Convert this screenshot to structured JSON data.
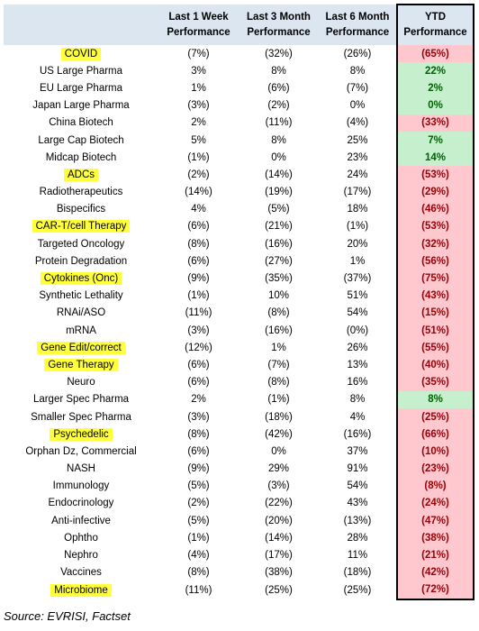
{
  "headers": [
    "",
    "Last 1 Week Performance",
    "Last 3 Month Performance",
    "Last 6 Month Performance",
    "YTD Performance"
  ],
  "rows": [
    {
      "name": "COVID",
      "highlight": true,
      "w1": "(7%)",
      "m3": "(32%)",
      "m6": "(26%)",
      "ytd": "(65%)",
      "ytd_status": "neg"
    },
    {
      "name": "US Large Pharma",
      "highlight": false,
      "w1": "3%",
      "m3": "8%",
      "m6": "8%",
      "ytd": "22%",
      "ytd_status": "pos"
    },
    {
      "name": "EU Large Pharma",
      "highlight": false,
      "w1": "1%",
      "m3": "(6%)",
      "m6": "(7%)",
      "ytd": "2%",
      "ytd_status": "pos"
    },
    {
      "name": "Japan Large Pharma",
      "highlight": false,
      "w1": "(3%)",
      "m3": "(2%)",
      "m6": "0%",
      "ytd": "0%",
      "ytd_status": "pos"
    },
    {
      "name": "China Biotech",
      "highlight": false,
      "w1": "2%",
      "m3": "(11%)",
      "m6": "(4%)",
      "ytd": "(33%)",
      "ytd_status": "neg"
    },
    {
      "name": "Large Cap Biotech",
      "highlight": false,
      "w1": "5%",
      "m3": "8%",
      "m6": "25%",
      "ytd": "7%",
      "ytd_status": "pos"
    },
    {
      "name": "Midcap Biotech",
      "highlight": false,
      "w1": "(1%)",
      "m3": "0%",
      "m6": "23%",
      "ytd": "14%",
      "ytd_status": "pos"
    },
    {
      "name": "ADCs",
      "highlight": true,
      "w1": "(2%)",
      "m3": "(14%)",
      "m6": "24%",
      "ytd": "(53%)",
      "ytd_status": "neg"
    },
    {
      "name": "Radiotherapeutics",
      "highlight": false,
      "w1": "(14%)",
      "m3": "(19%)",
      "m6": "(17%)",
      "ytd": "(29%)",
      "ytd_status": "neg"
    },
    {
      "name": "Bispecifics",
      "highlight": false,
      "w1": "4%",
      "m3": "(5%)",
      "m6": "18%",
      "ytd": "(46%)",
      "ytd_status": "neg"
    },
    {
      "name": "CAR-T/cell Therapy",
      "highlight": true,
      "w1": "(6%)",
      "m3": "(21%)",
      "m6": "(1%)",
      "ytd": "(53%)",
      "ytd_status": "neg"
    },
    {
      "name": "Targeted Oncology",
      "highlight": false,
      "w1": "(8%)",
      "m3": "(16%)",
      "m6": "20%",
      "ytd": "(32%)",
      "ytd_status": "neg"
    },
    {
      "name": "Protein Degradation",
      "highlight": false,
      "w1": "(6%)",
      "m3": "(27%)",
      "m6": "1%",
      "ytd": "(56%)",
      "ytd_status": "neg"
    },
    {
      "name": "Cytokines (Onc)",
      "highlight": true,
      "w1": "(9%)",
      "m3": "(35%)",
      "m6": "(37%)",
      "ytd": "(75%)",
      "ytd_status": "neg"
    },
    {
      "name": "Synthetic Lethality",
      "highlight": false,
      "w1": "(1%)",
      "m3": "10%",
      "m6": "51%",
      "ytd": "(43%)",
      "ytd_status": "neg"
    },
    {
      "name": "RNAi/ASO",
      "highlight": false,
      "w1": "(11%)",
      "m3": "(8%)",
      "m6": "54%",
      "ytd": "(15%)",
      "ytd_status": "neg"
    },
    {
      "name": "mRNA",
      "highlight": false,
      "w1": "(3%)",
      "m3": "(16%)",
      "m6": "(0%)",
      "ytd": "(51%)",
      "ytd_status": "neg"
    },
    {
      "name": "Gene Edit/correct",
      "highlight": true,
      "w1": "(12%)",
      "m3": "1%",
      "m6": "26%",
      "ytd": "(55%)",
      "ytd_status": "neg"
    },
    {
      "name": "Gene Therapy",
      "highlight": true,
      "w1": "(6%)",
      "m3": "(7%)",
      "m6": "13%",
      "ytd": "(40%)",
      "ytd_status": "neg"
    },
    {
      "name": "Neuro",
      "highlight": false,
      "w1": "(6%)",
      "m3": "(8%)",
      "m6": "16%",
      "ytd": "(35%)",
      "ytd_status": "neg"
    },
    {
      "name": "Larger Spec Pharma",
      "highlight": false,
      "w1": "2%",
      "m3": "(1%)",
      "m6": "8%",
      "ytd": "8%",
      "ytd_status": "pos"
    },
    {
      "name": "Smaller Spec Pharma",
      "highlight": false,
      "w1": "(3%)",
      "m3": "(18%)",
      "m6": "4%",
      "ytd": "(25%)",
      "ytd_status": "neg"
    },
    {
      "name": "Psychedelic",
      "highlight": true,
      "w1": "(8%)",
      "m3": "(42%)",
      "m6": "(16%)",
      "ytd": "(66%)",
      "ytd_status": "neg"
    },
    {
      "name": "Orphan Dz, Commercial",
      "highlight": false,
      "w1": "(6%)",
      "m3": "0%",
      "m6": "37%",
      "ytd": "(10%)",
      "ytd_status": "neg"
    },
    {
      "name": "NASH",
      "highlight": false,
      "w1": "(9%)",
      "m3": "29%",
      "m6": "91%",
      "ytd": "(23%)",
      "ytd_status": "neg"
    },
    {
      "name": "Immunology",
      "highlight": false,
      "w1": "(5%)",
      "m3": "(3%)",
      "m6": "54%",
      "ytd": "(8%)",
      "ytd_status": "neg"
    },
    {
      "name": "Endocrinology",
      "highlight": false,
      "w1": "(2%)",
      "m3": "(22%)",
      "m6": "43%",
      "ytd": "(24%)",
      "ytd_status": "neg"
    },
    {
      "name": "Anti-infective",
      "highlight": false,
      "w1": "(5%)",
      "m3": "(20%)",
      "m6": "(13%)",
      "ytd": "(47%)",
      "ytd_status": "neg"
    },
    {
      "name": "Ophtho",
      "highlight": false,
      "w1": "(1%)",
      "m3": "(14%)",
      "m6": "28%",
      "ytd": "(38%)",
      "ytd_status": "neg"
    },
    {
      "name": "Nephro",
      "highlight": false,
      "w1": "(4%)",
      "m3": "(17%)",
      "m6": "11%",
      "ytd": "(21%)",
      "ytd_status": "neg"
    },
    {
      "name": "Vaccines",
      "highlight": false,
      "w1": "(8%)",
      "m3": "(38%)",
      "m6": "(18%)",
      "ytd": "(42%)",
      "ytd_status": "neg"
    },
    {
      "name": "Microbiome",
      "highlight": true,
      "w1": "(11%)",
      "m3": "(25%)",
      "m6": "(25%)",
      "ytd": "(72%)",
      "ytd_status": "neg"
    }
  ],
  "colors": {
    "header_bg": "#dce6f1",
    "highlight": "#ffff3b",
    "negative_bg": "#ffc7ce",
    "negative_text": "#9c0006",
    "positive_bg": "#c6efce",
    "positive_text": "#006100"
  },
  "source": "Source: EVRISI, Factset"
}
